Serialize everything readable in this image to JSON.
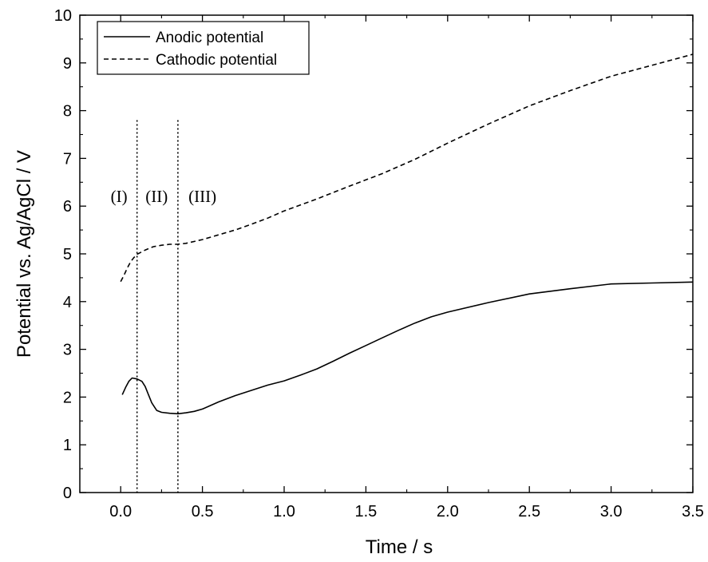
{
  "chart_data": {
    "type": "line",
    "xlabel": "Time / s",
    "ylabel": "Potential vs. Ag/AgCl / V",
    "xlim": [
      -0.25,
      3.5
    ],
    "ylim": [
      0,
      10
    ],
    "x_ticks": [
      "0.0",
      "0.5",
      "1.0",
      "1.5",
      "2.0",
      "2.5",
      "3.0",
      "3.5"
    ],
    "y_ticks": [
      "0",
      "1",
      "2",
      "3",
      "4",
      "5",
      "6",
      "7",
      "8",
      "9",
      "10"
    ],
    "grid": false,
    "legend_position": "top-left",
    "series": [
      {
        "name": "Anodic potential",
        "style": "solid",
        "color": "#000000",
        "points": [
          [
            0.01,
            2.05
          ],
          [
            0.03,
            2.2
          ],
          [
            0.05,
            2.33
          ],
          [
            0.07,
            2.4
          ],
          [
            0.1,
            2.38
          ],
          [
            0.13,
            2.33
          ],
          [
            0.15,
            2.22
          ],
          [
            0.17,
            2.05
          ],
          [
            0.19,
            1.88
          ],
          [
            0.22,
            1.72
          ],
          [
            0.25,
            1.68
          ],
          [
            0.3,
            1.66
          ],
          [
            0.35,
            1.65
          ],
          [
            0.4,
            1.67
          ],
          [
            0.45,
            1.7
          ],
          [
            0.5,
            1.75
          ],
          [
            0.6,
            1.9
          ],
          [
            0.7,
            2.03
          ],
          [
            0.8,
            2.14
          ],
          [
            0.9,
            2.25
          ],
          [
            1.0,
            2.34
          ],
          [
            1.1,
            2.46
          ],
          [
            1.2,
            2.59
          ],
          [
            1.3,
            2.75
          ],
          [
            1.4,
            2.92
          ],
          [
            1.5,
            3.08
          ],
          [
            1.6,
            3.24
          ],
          [
            1.7,
            3.4
          ],
          [
            1.8,
            3.55
          ],
          [
            1.9,
            3.68
          ],
          [
            2.0,
            3.78
          ],
          [
            2.25,
            3.98
          ],
          [
            2.5,
            4.16
          ],
          [
            2.75,
            4.27
          ],
          [
            3.0,
            4.37
          ],
          [
            3.25,
            4.39
          ],
          [
            3.5,
            4.41
          ]
        ]
      },
      {
        "name": "Cathodic potential",
        "style": "dashed",
        "color": "#000000",
        "points": [
          [
            0.0,
            4.42
          ],
          [
            0.02,
            4.55
          ],
          [
            0.04,
            4.7
          ],
          [
            0.06,
            4.83
          ],
          [
            0.08,
            4.92
          ],
          [
            0.1,
            4.99
          ],
          [
            0.15,
            5.08
          ],
          [
            0.2,
            5.15
          ],
          [
            0.25,
            5.18
          ],
          [
            0.3,
            5.2
          ],
          [
            0.35,
            5.2
          ],
          [
            0.4,
            5.22
          ],
          [
            0.5,
            5.3
          ],
          [
            0.6,
            5.4
          ],
          [
            0.7,
            5.5
          ],
          [
            0.8,
            5.62
          ],
          [
            0.9,
            5.75
          ],
          [
            1.0,
            5.9
          ],
          [
            1.2,
            6.15
          ],
          [
            1.4,
            6.42
          ],
          [
            1.6,
            6.68
          ],
          [
            1.8,
            6.98
          ],
          [
            2.0,
            7.32
          ],
          [
            2.25,
            7.72
          ],
          [
            2.5,
            8.1
          ],
          [
            2.75,
            8.42
          ],
          [
            3.0,
            8.72
          ],
          [
            3.25,
            8.95
          ],
          [
            3.5,
            9.18
          ]
        ]
      }
    ],
    "vertical_markers": [
      {
        "x": 0.1,
        "style": "dotted"
      },
      {
        "x": 0.35,
        "style": "dotted"
      }
    ],
    "annotations": [
      {
        "text": "(I)",
        "x": -0.01,
        "y": 6.2
      },
      {
        "text": "(II)",
        "x": 0.22,
        "y": 6.2
      },
      {
        "text": "(III)",
        "x": 0.5,
        "y": 6.2
      }
    ]
  }
}
